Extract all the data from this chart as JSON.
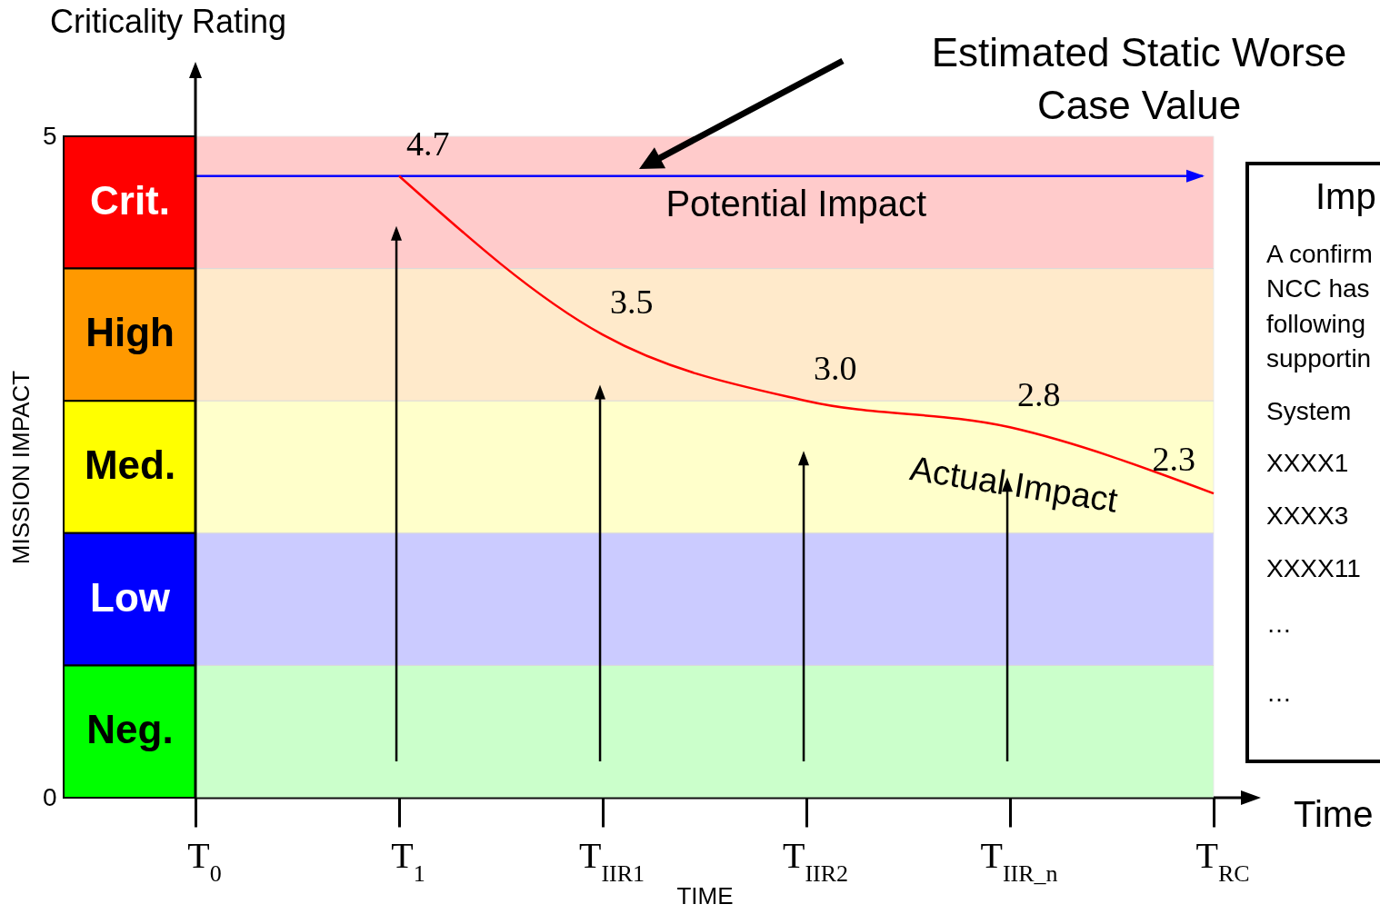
{
  "chart_data": {
    "type": "line",
    "ylabel": "MISSION IMPACT",
    "xlabel": "TIME",
    "categories": [
      "T$_{0}$",
      "T$_{1}$",
      "T$_{IIR1}$",
      "T$_{IIR2}$",
      "T$_{IIR_n}$",
      "T$_{RC}$"
    ],
    "series": [
      {
        "name": "Actual Impact",
        "color": "#ff0000",
        "values": [
          null,
          4.7,
          3.5,
          3.0,
          2.8,
          2.3
        ],
        "value_labels": [
          null,
          "4.7",
          "3.5",
          "3.0",
          "2.8",
          "2.3"
        ]
      }
    ],
    "ylim": [
      0,
      5
    ],
    "yticks": [
      0,
      5
    ],
    "ref_lines": [
      {
        "axis": "y",
        "value": 4.7,
        "label": "Potential Impact",
        "color": "#0000ff"
      }
    ],
    "bands": [
      {
        "axis": "y",
        "from": 4,
        "to": 5,
        "label": "Crit.",
        "color": "#ff0000"
      },
      {
        "axis": "y",
        "from": 3,
        "to": 4,
        "label": "High",
        "color": "#ff9900"
      },
      {
        "axis": "y",
        "from": 2,
        "to": 3,
        "label": "Med.",
        "color": "#ffff00"
      },
      {
        "axis": "y",
        "from": 1,
        "to": 2,
        "label": "Low",
        "color": "#0000ff"
      },
      {
        "axis": "y",
        "from": 0,
        "to": 1,
        "label": "Neg.",
        "color": "#00ff00"
      }
    ],
    "annotations": [
      "Criticality Rating",
      "Estimated Static Worse Case Value",
      "Time",
      "Imp",
      "A confirm",
      "NCC has",
      "following",
      "supportin",
      "System",
      "XXXX1",
      "XXXX3",
      "XXXX11",
      "…",
      "…"
    ],
    "grid": false,
    "marker": "none",
    "line_style": "solid"
  }
}
